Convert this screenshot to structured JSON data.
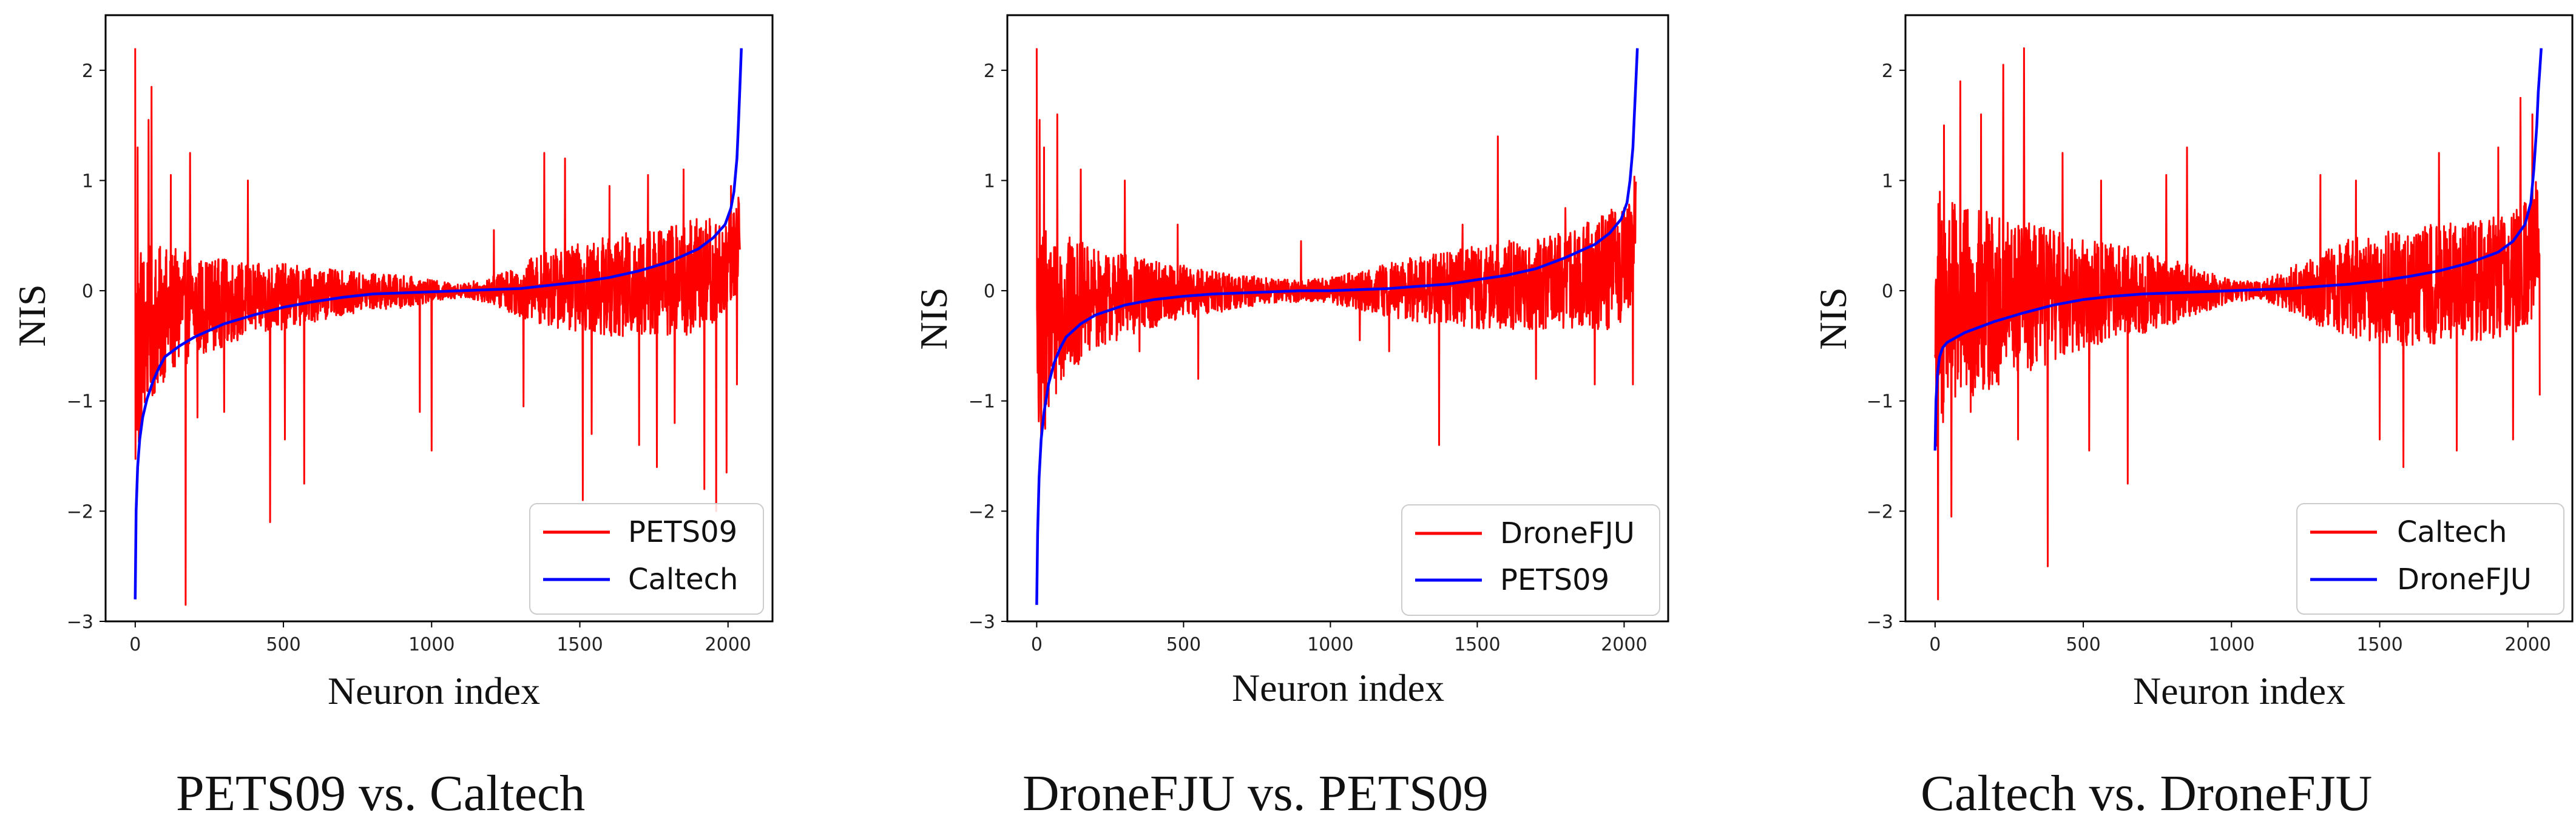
{
  "chart_data": [
    {
      "type": "line",
      "caption": "PETS09 vs. Caltech",
      "xlabel": "Neuron index",
      "ylabel": "NIS",
      "xlim": [
        -100,
        2150
      ],
      "ylim": [
        -3,
        2.5
      ],
      "xticks": [
        0,
        500,
        1000,
        1500,
        2000
      ],
      "yticks": [
        -3,
        -2,
        -1,
        0,
        1,
        2
      ],
      "legend_position": "lower-right",
      "series": [
        {
          "name": "PETS09",
          "color": "#ff0000",
          "style": "noisy",
          "x": [
            0,
            30,
            60,
            100,
            150,
            200,
            300,
            400,
            500,
            600,
            700,
            800,
            900,
            1000,
            1100,
            1200,
            1300,
            1400,
            1500,
            1600,
            1700,
            1800,
            1900,
            1950,
            2000,
            2040
          ],
          "amplitude": [
            1.1,
            0.8,
            0.7,
            0.6,
            0.55,
            0.45,
            0.4,
            0.32,
            0.3,
            0.25,
            0.2,
            0.17,
            0.15,
            0.1,
            0.06,
            0.12,
            0.25,
            0.35,
            0.4,
            0.45,
            0.5,
            0.5,
            0.55,
            0.5,
            0.45,
            0.4
          ],
          "spikes": [
            {
              "x": 0,
              "y": 2.2
            },
            {
              "x": 8,
              "y": 1.3
            },
            {
              "x": 45,
              "y": 1.55
            },
            {
              "x": 55,
              "y": 1.85
            },
            {
              "x": 120,
              "y": 1.05
            },
            {
              "x": 170,
              "y": -2.85
            },
            {
              "x": 185,
              "y": 1.25
            },
            {
              "x": 210,
              "y": -1.15
            },
            {
              "x": 300,
              "y": -1.1
            },
            {
              "x": 380,
              "y": 1.0
            },
            {
              "x": 455,
              "y": -2.1
            },
            {
              "x": 505,
              "y": -1.35
            },
            {
              "x": 570,
              "y": -1.75
            },
            {
              "x": 960,
              "y": -1.1
            },
            {
              "x": 1000,
              "y": -1.45
            },
            {
              "x": 1210,
              "y": 0.55
            },
            {
              "x": 1310,
              "y": -1.05
            },
            {
              "x": 1380,
              "y": 1.25
            },
            {
              "x": 1450,
              "y": 1.2
            },
            {
              "x": 1510,
              "y": -1.9
            },
            {
              "x": 1540,
              "y": -1.3
            },
            {
              "x": 1600,
              "y": 0.95
            },
            {
              "x": 1700,
              "y": -1.4
            },
            {
              "x": 1730,
              "y": 1.05
            },
            {
              "x": 1760,
              "y": -1.6
            },
            {
              "x": 1820,
              "y": -1.2
            },
            {
              "x": 1850,
              "y": 1.1
            },
            {
              "x": 1920,
              "y": -1.8
            },
            {
              "x": 1960,
              "y": -2.0
            },
            {
              "x": 1995,
              "y": -1.65
            },
            {
              "x": 2010,
              "y": 0.95
            },
            {
              "x": 2030,
              "y": -0.85
            }
          ]
        },
        {
          "name": "Caltech",
          "color": "#0000ff",
          "style": "sorted",
          "x": [
            0,
            3,
            8,
            15,
            25,
            40,
            60,
            80,
            100,
            150,
            200,
            300,
            400,
            500,
            600,
            700,
            800,
            900,
            1000,
            1100,
            1200,
            1300,
            1400,
            1500,
            1600,
            1700,
            1800,
            1900,
            1950,
            1990,
            2010,
            2020,
            2030,
            2035,
            2040,
            2045
          ],
          "y": [
            -2.8,
            -2.0,
            -1.6,
            -1.35,
            -1.15,
            -0.98,
            -0.82,
            -0.7,
            -0.6,
            -0.5,
            -0.42,
            -0.3,
            -0.22,
            -0.15,
            -0.1,
            -0.06,
            -0.03,
            -0.02,
            -0.01,
            0.0,
            0.01,
            0.02,
            0.05,
            0.08,
            0.12,
            0.18,
            0.26,
            0.38,
            0.48,
            0.6,
            0.75,
            0.9,
            1.2,
            1.5,
            1.85,
            2.2
          ]
        }
      ]
    },
    {
      "type": "line",
      "caption": "DroneFJU vs. PETS09",
      "xlabel": "Neuron index",
      "ylabel": "NIS",
      "xlim": [
        -100,
        2150
      ],
      "ylim": [
        -3,
        2.5
      ],
      "xticks": [
        0,
        500,
        1000,
        1500,
        2000
      ],
      "yticks": [
        -3,
        -2,
        -1,
        0,
        1,
        2
      ],
      "legend_position": "lower-right",
      "series": [
        {
          "name": "DroneFJU",
          "color": "#ff0000",
          "style": "noisy",
          "x": [
            0,
            30,
            60,
            100,
            150,
            200,
            300,
            400,
            500,
            600,
            700,
            800,
            900,
            1000,
            1100,
            1200,
            1300,
            1400,
            1500,
            1600,
            1700,
            1800,
            1900,
            1950,
            2000,
            2040
          ],
          "amplitude": [
            1.2,
            0.9,
            0.75,
            0.65,
            0.55,
            0.45,
            0.38,
            0.3,
            0.25,
            0.2,
            0.15,
            0.12,
            0.1,
            0.12,
            0.18,
            0.25,
            0.3,
            0.35,
            0.38,
            0.4,
            0.42,
            0.45,
            0.5,
            0.55,
            0.55,
            0.5
          ],
          "spikes": [
            {
              "x": 0,
              "y": 2.2
            },
            {
              "x": 10,
              "y": 1.55
            },
            {
              "x": 25,
              "y": 1.3
            },
            {
              "x": 70,
              "y": 1.6
            },
            {
              "x": 150,
              "y": 1.1
            },
            {
              "x": 300,
              "y": 1.0
            },
            {
              "x": 350,
              "y": -0.55
            },
            {
              "x": 480,
              "y": 0.6
            },
            {
              "x": 550,
              "y": -0.8
            },
            {
              "x": 900,
              "y": 0.45
            },
            {
              "x": 1100,
              "y": -0.45
            },
            {
              "x": 1200,
              "y": -0.55
            },
            {
              "x": 1370,
              "y": -1.4
            },
            {
              "x": 1450,
              "y": 0.6
            },
            {
              "x": 1570,
              "y": 1.4
            },
            {
              "x": 1700,
              "y": -0.8
            },
            {
              "x": 1800,
              "y": 0.75
            },
            {
              "x": 1900,
              "y": -0.85
            },
            {
              "x": 2000,
              "y": 0.75
            },
            {
              "x": 2030,
              "y": -0.85
            }
          ]
        },
        {
          "name": "PETS09",
          "color": "#0000ff",
          "style": "sorted",
          "x": [
            0,
            3,
            8,
            15,
            25,
            40,
            60,
            80,
            100,
            150,
            200,
            300,
            400,
            500,
            600,
            700,
            800,
            900,
            1000,
            1100,
            1200,
            1300,
            1400,
            1500,
            1600,
            1700,
            1800,
            1900,
            1950,
            1990,
            2010,
            2020,
            2030,
            2035,
            2040,
            2045
          ],
          "y": [
            -2.85,
            -2.2,
            -1.7,
            -1.35,
            -1.1,
            -0.85,
            -0.65,
            -0.52,
            -0.42,
            -0.3,
            -0.22,
            -0.13,
            -0.08,
            -0.05,
            -0.03,
            -0.02,
            -0.01,
            0.0,
            0.0,
            0.01,
            0.02,
            0.04,
            0.06,
            0.1,
            0.14,
            0.2,
            0.3,
            0.42,
            0.52,
            0.65,
            0.8,
            1.0,
            1.3,
            1.6,
            1.9,
            2.2
          ]
        }
      ]
    },
    {
      "type": "line",
      "caption": "Caltech vs. DroneFJU",
      "xlabel": "Neuron index",
      "ylabel": "NIS",
      "xlim": [
        -100,
        2150
      ],
      "ylim": [
        -3,
        2.5
      ],
      "xticks": [
        0,
        500,
        1000,
        1500,
        2000
      ],
      "yticks": [
        -3,
        -2,
        -1,
        0,
        1,
        2
      ],
      "legend_position": "lower-right",
      "series": [
        {
          "name": "Caltech",
          "color": "#ff0000",
          "style": "noisy",
          "x": [
            0,
            30,
            60,
            100,
            150,
            200,
            300,
            400,
            500,
            600,
            700,
            800,
            900,
            1000,
            1100,
            1200,
            1300,
            1400,
            1500,
            1600,
            1700,
            1800,
            1900,
            1950,
            2000,
            2040
          ],
          "amplitude": [
            1.3,
            1.1,
            0.95,
            0.9,
            0.85,
            0.8,
            0.7,
            0.6,
            0.5,
            0.45,
            0.38,
            0.3,
            0.2,
            0.1,
            0.08,
            0.2,
            0.35,
            0.45,
            0.5,
            0.55,
            0.55,
            0.55,
            0.55,
            0.55,
            0.6,
            0.55
          ],
          "spikes": [
            {
              "x": 10,
              "y": -2.8
            },
            {
              "x": 30,
              "y": 1.5
            },
            {
              "x": 55,
              "y": -2.05
            },
            {
              "x": 85,
              "y": 1.9
            },
            {
              "x": 120,
              "y": -1.1
            },
            {
              "x": 155,
              "y": 1.6
            },
            {
              "x": 230,
              "y": 2.05
            },
            {
              "x": 280,
              "y": -1.35
            },
            {
              "x": 300,
              "y": 2.2
            },
            {
              "x": 380,
              "y": -2.5
            },
            {
              "x": 430,
              "y": 1.25
            },
            {
              "x": 520,
              "y": -1.45
            },
            {
              "x": 560,
              "y": 1.0
            },
            {
              "x": 650,
              "y": -1.75
            },
            {
              "x": 780,
              "y": 1.05
            },
            {
              "x": 850,
              "y": 1.3
            },
            {
              "x": 1300,
              "y": 1.05
            },
            {
              "x": 1420,
              "y": 1.0
            },
            {
              "x": 1500,
              "y": -1.35
            },
            {
              "x": 1580,
              "y": -1.6
            },
            {
              "x": 1700,
              "y": 1.25
            },
            {
              "x": 1760,
              "y": -1.45
            },
            {
              "x": 1900,
              "y": 1.3
            },
            {
              "x": 1950,
              "y": -1.35
            },
            {
              "x": 1975,
              "y": 1.75
            },
            {
              "x": 2015,
              "y": 1.6
            },
            {
              "x": 2040,
              "y": -0.95
            }
          ]
        },
        {
          "name": "DroneFJU",
          "color": "#0000ff",
          "style": "sorted",
          "x": [
            0,
            3,
            8,
            15,
            25,
            40,
            60,
            80,
            100,
            150,
            200,
            300,
            400,
            500,
            600,
            700,
            800,
            900,
            1000,
            1100,
            1200,
            1300,
            1400,
            1500,
            1600,
            1700,
            1800,
            1900,
            1950,
            1990,
            2010,
            2020,
            2030,
            2035,
            2040,
            2045
          ],
          "y": [
            -1.45,
            -1.0,
            -0.75,
            -0.6,
            -0.52,
            -0.47,
            -0.44,
            -0.41,
            -0.38,
            -0.33,
            -0.28,
            -0.2,
            -0.13,
            -0.08,
            -0.05,
            -0.03,
            -0.02,
            -0.01,
            0.0,
            0.01,
            0.02,
            0.04,
            0.06,
            0.09,
            0.13,
            0.18,
            0.25,
            0.35,
            0.45,
            0.6,
            0.8,
            1.1,
            1.5,
            1.8,
            2.0,
            2.2
          ]
        }
      ]
    }
  ]
}
